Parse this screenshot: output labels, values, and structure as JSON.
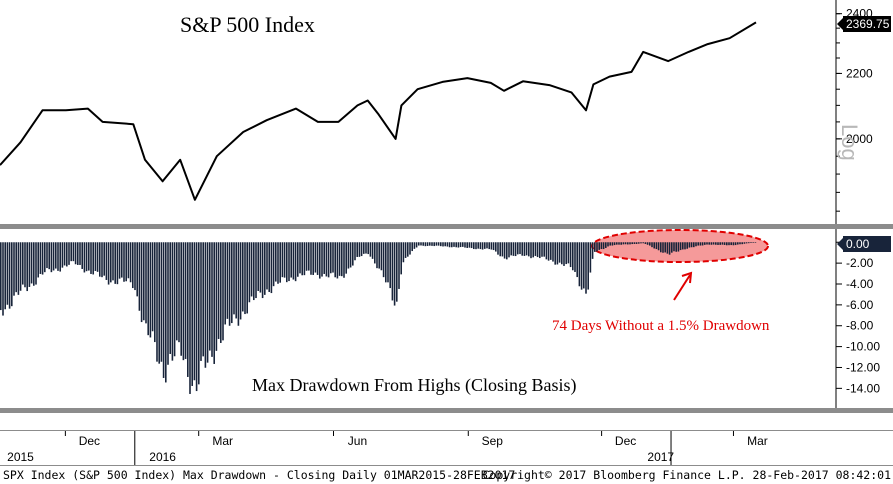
{
  "chart_data": [
    {
      "type": "line",
      "title": "S&P 500 Index",
      "scale_label": "Log",
      "log_scale": true,
      "last_value_label": "2369.75",
      "ylim": [
        1790,
        2420
      ],
      "yticks": [
        2000,
        2200,
        2400
      ],
      "x_range": [
        "2015-10-01",
        "2017-02-28"
      ],
      "x": [
        "2015-10-01",
        "2015-10-15",
        "2015-10-30",
        "2015-11-15",
        "2015-11-30",
        "2015-12-10",
        "2015-12-31",
        "2016-01-08",
        "2016-01-20",
        "2016-02-01",
        "2016-02-11",
        "2016-02-26",
        "2016-03-15",
        "2016-03-31",
        "2016-04-20",
        "2016-05-05",
        "2016-05-19",
        "2016-06-01",
        "2016-06-08",
        "2016-06-15",
        "2016-06-27",
        "2016-07-01",
        "2016-07-12",
        "2016-07-29",
        "2016-08-15",
        "2016-08-31",
        "2016-09-09",
        "2016-09-22",
        "2016-10-10",
        "2016-10-25",
        "2016-11-04",
        "2016-11-09",
        "2016-11-20",
        "2016-12-05",
        "2016-12-13",
        "2016-12-30",
        "2017-01-13",
        "2017-01-26",
        "2017-02-10",
        "2017-02-28"
      ],
      "values": [
        1925,
        1990,
        2085,
        2085,
        2090,
        2050,
        2043,
        1940,
        1880,
        1940,
        1830,
        1950,
        2020,
        2055,
        2090,
        2050,
        2050,
        2100,
        2115,
        2075,
        2000,
        2100,
        2150,
        2173,
        2185,
        2170,
        2145,
        2175,
        2163,
        2140,
        2085,
        2165,
        2190,
        2205,
        2270,
        2240,
        2270,
        2296,
        2316,
        2369.75
      ],
      "ylabel": ""
    },
    {
      "type": "bar",
      "title": "Max Drawdown From Highs (Closing Basis)",
      "ylim": [
        -15.5,
        0.6
      ],
      "yticks": [
        0,
        -2,
        -4,
        -6,
        -8,
        -10,
        -12,
        -14
      ],
      "ytick_labels": [
        "0.00",
        "-2.00",
        "-4.00",
        "-6.00",
        "-8.00",
        "-10.00",
        "-12.00",
        "-14.00"
      ],
      "last_value_label": "0.00",
      "x": [
        "2015-10-01",
        "2015-10-30",
        "2015-11-20",
        "2015-12-10",
        "2015-12-31",
        "2016-01-08",
        "2016-01-20",
        "2016-02-01",
        "2016-02-11",
        "2016-02-26",
        "2016-03-15",
        "2016-03-31",
        "2016-04-20",
        "2016-05-05",
        "2016-05-19",
        "2016-06-01",
        "2016-06-08",
        "2016-06-15",
        "2016-06-27",
        "2016-07-01",
        "2016-07-12",
        "2016-07-31",
        "2016-08-31",
        "2016-09-09",
        "2016-09-22",
        "2016-10-10",
        "2016-10-25",
        "2016-11-04",
        "2016-11-09",
        "2016-11-20",
        "2016-12-13",
        "2016-12-30",
        "2017-01-10",
        "2017-01-26",
        "2017-02-10",
        "2017-02-28"
      ],
      "values": [
        -6.5,
        -3.0,
        -2.0,
        -3.5,
        -4.0,
        -8.5,
        -12.0,
        -10.5,
        -14.0,
        -9.5,
        -6.5,
        -4.5,
        -3.2,
        -3.0,
        -3.5,
        -1.5,
        -1.0,
        -2.5,
        -6.0,
        -2.0,
        -0.3,
        -0.4,
        -0.7,
        -1.5,
        -1.2,
        -1.7,
        -2.5,
        -5.0,
        -1.0,
        -0.3,
        -0.1,
        -1.2,
        -0.6,
        -0.2,
        -0.3,
        0.0
      ],
      "annotation": "74 Days Without a 1.5% Drawdown",
      "ylabel": ""
    }
  ],
  "x_axis": {
    "months": [
      "Dec",
      "Mar",
      "Jun",
      "Sep",
      "Dec",
      "Mar"
    ],
    "years": [
      "2015",
      "2016",
      "2017"
    ]
  },
  "footer": {
    "left": "SPX Index (S&P 500 Index) Max Drawdown - Closing  Daily 01MAR2015-28FEB2017",
    "right": "Copyright© 2017 Bloomberg Finance L.P.   28-Feb-2017 08:42:01"
  },
  "colors": {
    "line": "#000000",
    "bars": "#18243a",
    "highlight_fill": "#f59a9a",
    "highlight_stroke": "#e00000",
    "annotation": "#e00000",
    "value_box": "#000000",
    "separator": "#8c8c8c",
    "grid": "#d0d0d0"
  }
}
